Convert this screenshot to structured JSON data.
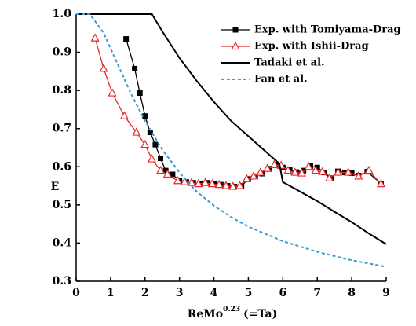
{
  "chart_data": {
    "type": "line",
    "xlabel": {
      "text": "ReMo",
      "superscript": "0.23",
      "suffix": "(=Ta)"
    },
    "ylabel": "E",
    "xlim": [
      0,
      9
    ],
    "ylim": [
      0.3,
      1.0
    ],
    "xticks": [
      0,
      1,
      2,
      3,
      4,
      5,
      6,
      7,
      8,
      9
    ],
    "yticks": [
      0.3,
      0.4,
      0.5,
      0.6,
      0.7,
      0.8,
      0.9,
      {
        "value": 1,
        "label": "1.0"
      }
    ],
    "legend": "top-right",
    "series": [
      {
        "name": "Exp. with Tomiyama-Drag",
        "color": "#000000",
        "marker": "square",
        "dash": "solid",
        "x": [
          1.45,
          1.7,
          1.85,
          2.0,
          2.15,
          2.3,
          2.45,
          2.6,
          2.8,
          3.0,
          3.2,
          3.4,
          3.6,
          3.8,
          4.0,
          4.2,
          4.4,
          4.6,
          4.8,
          5.0,
          5.2,
          5.4,
          5.6,
          5.8,
          6.0,
          6.2,
          6.4,
          6.6,
          6.8,
          7.0,
          7.2,
          7.4,
          7.6,
          7.8,
          8.0,
          8.2,
          8.45,
          8.85
        ],
        "values": [
          0.935,
          0.857,
          0.793,
          0.733,
          0.69,
          0.658,
          0.622,
          0.59,
          0.58,
          0.563,
          0.56,
          0.558,
          0.555,
          0.558,
          0.555,
          0.553,
          0.55,
          0.548,
          0.55,
          0.568,
          0.575,
          0.582,
          0.595,
          0.605,
          0.598,
          0.593,
          0.586,
          0.59,
          0.602,
          0.598,
          0.585,
          0.57,
          0.588,
          0.585,
          0.583,
          0.577,
          0.587,
          0.556
        ]
      },
      {
        "name": "Exp. with Ishii-Drag",
        "color": "#e8272a",
        "marker": "triangle",
        "dash": "solid",
        "x": [
          0.55,
          0.8,
          1.05,
          1.4,
          1.75,
          2.0,
          2.2,
          2.45,
          2.65,
          2.95,
          3.15,
          3.35,
          3.55,
          3.75,
          3.95,
          4.15,
          4.35,
          4.55,
          4.75,
          4.95,
          5.15,
          5.35,
          5.55,
          5.75,
          5.95,
          6.15,
          6.35,
          6.55,
          6.75,
          6.95,
          7.15,
          7.35,
          7.6,
          7.9,
          8.2,
          8.5,
          8.85
        ],
        "values": [
          0.937,
          0.857,
          0.793,
          0.733,
          0.69,
          0.658,
          0.62,
          0.59,
          0.58,
          0.563,
          0.56,
          0.558,
          0.555,
          0.558,
          0.555,
          0.553,
          0.55,
          0.548,
          0.55,
          0.568,
          0.575,
          0.585,
          0.595,
          0.605,
          0.603,
          0.59,
          0.585,
          0.583,
          0.6,
          0.59,
          0.587,
          0.57,
          0.585,
          0.585,
          0.575,
          0.59,
          0.555
        ]
      },
      {
        "name": "Tadaki et al.",
        "color": "#000000",
        "marker": "none",
        "dash": "solid",
        "x": [
          0,
          2.2,
          2.5,
          3,
          3.5,
          4,
          4.5,
          5,
          5.5,
          5.9,
          6.0,
          6.5,
          7,
          7.5,
          8,
          8.5,
          9
        ],
        "values": [
          1.0,
          1.0,
          0.955,
          0.885,
          0.825,
          0.77,
          0.72,
          0.68,
          0.64,
          0.608,
          0.56,
          0.535,
          0.51,
          0.482,
          0.455,
          0.425,
          0.397
        ]
      },
      {
        "name": "Fan et al.",
        "color": "#3a9bd0",
        "marker": "none",
        "dash": "dashed",
        "x": [
          0,
          0.4,
          0.8,
          1.2,
          1.6,
          2.0,
          2.5,
          3,
          3.5,
          4,
          4.5,
          5,
          6,
          7,
          8,
          9
        ],
        "values": [
          1.0,
          1.0,
          0.95,
          0.87,
          0.79,
          0.72,
          0.645,
          0.585,
          0.535,
          0.498,
          0.468,
          0.443,
          0.405,
          0.377,
          0.355,
          0.338
        ]
      }
    ]
  }
}
